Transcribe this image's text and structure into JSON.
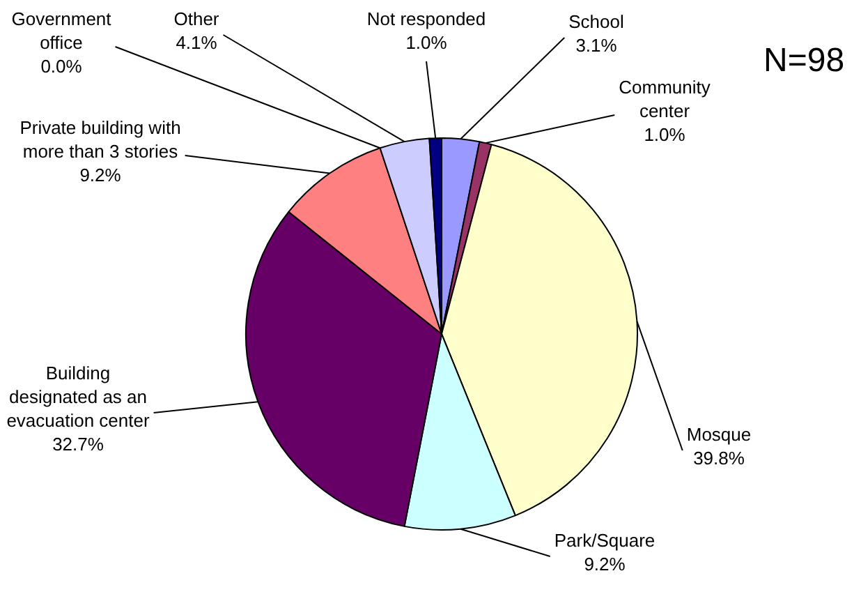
{
  "chart_data": {
    "type": "pie",
    "categories": [
      "School",
      "Community center",
      "Mosque",
      "Park/Square",
      "Building designated as an evacuation center",
      "Private building with more than 3 stories",
      "Government office",
      "Other",
      "Not responded"
    ],
    "values": [
      3.1,
      1.0,
      39.8,
      9.2,
      32.7,
      9.2,
      0.0,
      4.1,
      1.0
    ],
    "value_labels": [
      "3.1%",
      "1.0%",
      "39.8%",
      "9.2%",
      "32.7%",
      "9.2%",
      "0.0%",
      "4.1%",
      "1.0%"
    ],
    "colors": [
      "#9999ff",
      "#993366",
      "#ffffcc",
      "#ccffff",
      "#660066",
      "#ff8080",
      "#ffffff",
      "#ccccff",
      "#000080"
    ],
    "annotations": [
      "N=98"
    ],
    "legend": false
  }
}
